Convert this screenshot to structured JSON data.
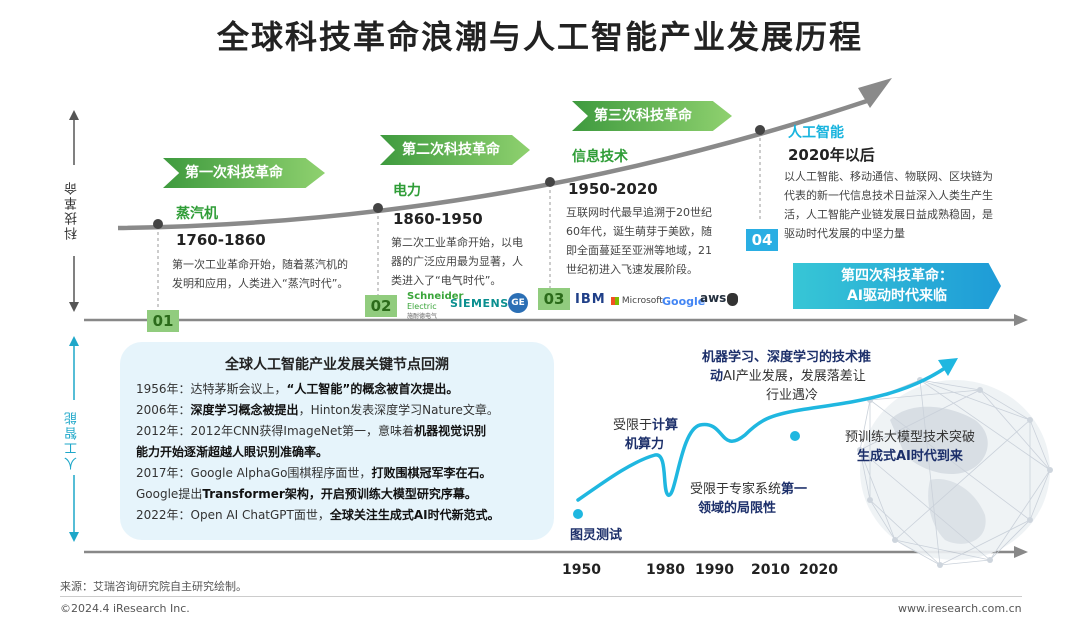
{
  "title": "全球科技革命浪潮与人工智能产业发展历程",
  "axis_top_label": "科技革命",
  "axis_bottom_label": "人工智能",
  "revolutions": [
    {
      "tag": "第一次科技革命",
      "tech": "蒸汽机",
      "years": "1760-1860",
      "desc": [
        "第一次工业革命开始，随着蒸汽机的",
        "发明和应用，人类进入“蒸汽时代”。"
      ],
      "num": "01"
    },
    {
      "tag": "第二次科技革命",
      "tech": "电力",
      "years": "1860-1950",
      "desc": [
        "第二次工业革命开始，以电",
        "器的广泛应用最为显著，人",
        "类进入了“电气时代”。"
      ],
      "num": "02"
    },
    {
      "tag": "第三次科技革命",
      "tech": "信息技术",
      "years": "1950-2020",
      "desc": [
        "互联网时代最早追溯于20世纪",
        "60年代，诞生萌芽于美欧，随",
        "即全面蔓延至亚洲等地域，21",
        "世纪初进入飞速发展阶段。"
      ],
      "num": "03"
    },
    {
      "tag": "",
      "tech": "人工智能",
      "years": "2020年以后",
      "desc": [
        "以人工智能、移动通信、物联网、区块链为",
        "代表的新一代信息技术日益深入人类生产生",
        "活，人工智能产业链发展日益成熟稳固，是",
        "驱动时代发展的中坚力量"
      ],
      "num": "04"
    }
  ],
  "logos_02": {
    "schneider": "Schneider",
    "schneider_sub": "Electric",
    "schneider_cn": "施耐德电气",
    "siemens": "SIEMENS",
    "ge": "GE"
  },
  "logos_03": {
    "ibm": "IBM",
    "microsoft": "Microsoft",
    "google": "Google",
    "aws": "aws",
    "apple": ""
  },
  "fourth": {
    "line1": "第四次科技革命：",
    "line2": "AI驱动时代来临"
  },
  "panel": {
    "title": "全球人工智能产业发展关键节点回溯",
    "lines": [
      [
        {
          "t": "1956年：达特茅斯会议上，"
        },
        {
          "t": "“人工智能”的概念被首次提出。",
          "b": true
        }
      ],
      [
        {
          "t": "2006年："
        },
        {
          "t": "深度学习概念被提出",
          "b": true
        },
        {
          "t": "，Hinton发表深度学习Nature文章。"
        }
      ],
      [
        {
          "t": "2012年：2012年CNN获得ImageNet第一，意味着"
        },
        {
          "t": "机器视觉识别",
          "b": true
        }
      ],
      [
        {
          "t": "能力开始逐渐超越人眼识别准确率。",
          "b": true
        }
      ],
      [
        {
          "t": "2017年：Google AlphaGo围棋程序面世，"
        },
        {
          "t": "打败围棋冠军李在石。",
          "b": true
        }
      ],
      [
        {
          "t": "Google提出"
        },
        {
          "t": "Transformer架构，开启预训练大模型研究序幕。",
          "b": true
        }
      ],
      [
        {
          "t": "2022年：Open AI ChatGPT面世，"
        },
        {
          "t": "全球关注生成式AI时代新范式。",
          "b": true
        }
      ]
    ]
  },
  "ai_curve": {
    "turing": "图灵测试",
    "compute_1": "受限于",
    "compute_2": "计算",
    "compute_3": "机算力",
    "expert_1": "受限于专家系统",
    "expert_2": "第一",
    "expert_3": "领域的局限性",
    "ml_1": "机器学习、深度学习的技术推",
    "ml_2": "动",
    "ml_3": "AI产业发展，发展落差让",
    "ml_4": "行业遇冷",
    "gen_1": "预训练大模型技术突破",
    "gen_2": "生成式AI时代到来",
    "x_ticks": [
      "1950",
      "1980",
      "1990",
      "2010",
      "2020"
    ]
  },
  "source": "来源：艾瑞咨询研究院自主研究绘制。",
  "copyright": "©2024.4 iResearch Inc.",
  "website": "www.iresearch.com.cn",
  "colors": {
    "green": "#2f9d37",
    "cyan": "#18b4de",
    "teal": "#1ea7c9",
    "gray_arrow": "#8a8a8a",
    "panel_bg": "#e6f4fb"
  }
}
